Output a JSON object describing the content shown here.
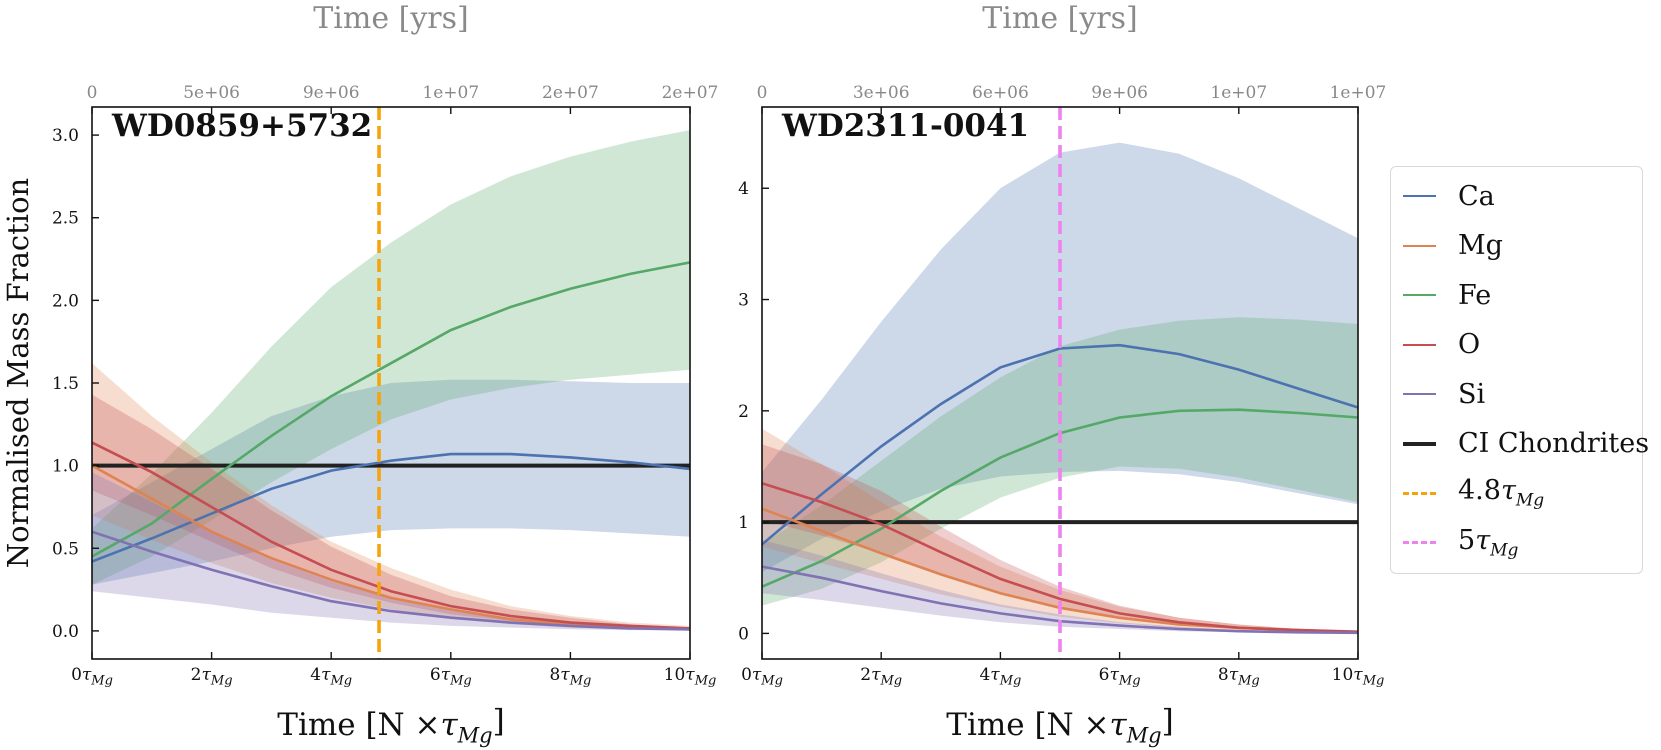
{
  "chart_data": [
    {
      "type": "line",
      "title": "WD0859+5732",
      "xlabel": "Time [N ×τMg]",
      "ylabel": "Normalised Mass Fraction",
      "top_xlabel": "Time [yrs]",
      "x_ticks": [
        "0τMg",
        "2τMg",
        "4τMg",
        "6τMg",
        "8τMg",
        "10τMg"
      ],
      "top_ticks": [
        "0",
        "5e+06",
        "9e+06",
        "1e+07",
        "2e+07",
        "2e+07"
      ],
      "y_ticks": [
        "0.0",
        "0.5",
        "1.0",
        "1.5",
        "2.0",
        "2.5",
        "3.0"
      ],
      "xlim": [
        0,
        10
      ],
      "ylim": [
        -0.17,
        3.17
      ],
      "x": [
        0,
        1,
        2,
        3,
        4,
        5,
        6,
        7,
        8,
        9,
        10
      ],
      "series": [
        {
          "name": "Ca",
          "color": "#4c72b0",
          "values": [
            0.42,
            0.56,
            0.71,
            0.86,
            0.97,
            1.03,
            1.07,
            1.07,
            1.05,
            1.02,
            0.98
          ],
          "lower": [
            0.28,
            0.35,
            0.42,
            0.5,
            0.57,
            0.61,
            0.62,
            0.62,
            0.61,
            0.59,
            0.57
          ],
          "upper": [
            0.7,
            0.9,
            1.1,
            1.3,
            1.42,
            1.5,
            1.52,
            1.52,
            1.51,
            1.5,
            1.5
          ]
        },
        {
          "name": "Fe",
          "color": "#55a868",
          "values": [
            0.45,
            0.65,
            0.92,
            1.18,
            1.42,
            1.62,
            1.82,
            1.96,
            2.07,
            2.16,
            2.23
          ],
          "lower": [
            0.28,
            0.45,
            0.67,
            0.9,
            1.1,
            1.28,
            1.4,
            1.47,
            1.52,
            1.55,
            1.58
          ],
          "upper": [
            0.62,
            0.95,
            1.32,
            1.72,
            2.08,
            2.35,
            2.58,
            2.75,
            2.87,
            2.96,
            3.03
          ]
        },
        {
          "name": "Mg",
          "color": "#dd8452",
          "values": [
            1.0,
            0.8,
            0.6,
            0.44,
            0.31,
            0.2,
            0.13,
            0.07,
            0.04,
            0.02,
            0.01
          ],
          "lower": [
            0.7,
            0.55,
            0.41,
            0.29,
            0.2,
            0.13,
            0.08,
            0.04,
            0.02,
            0.01,
            0.005
          ],
          "upper": [
            1.62,
            1.3,
            1.02,
            0.76,
            0.54,
            0.38,
            0.25,
            0.15,
            0.09,
            0.05,
            0.03
          ]
        },
        {
          "name": "O",
          "color": "#c44e52",
          "values": [
            1.14,
            0.96,
            0.75,
            0.54,
            0.37,
            0.24,
            0.15,
            0.09,
            0.05,
            0.03,
            0.015
          ],
          "lower": [
            0.85,
            0.7,
            0.54,
            0.38,
            0.26,
            0.17,
            0.1,
            0.06,
            0.03,
            0.02,
            0.01
          ],
          "upper": [
            1.43,
            1.22,
            0.98,
            0.73,
            0.51,
            0.34,
            0.21,
            0.13,
            0.08,
            0.04,
            0.02
          ]
        },
        {
          "name": "Si",
          "color": "#8172b3",
          "values": [
            0.6,
            0.48,
            0.37,
            0.27,
            0.18,
            0.12,
            0.08,
            0.05,
            0.03,
            0.015,
            0.01
          ],
          "lower": [
            0.24,
            0.2,
            0.16,
            0.11,
            0.08,
            0.05,
            0.03,
            0.02,
            0.01,
            0.005,
            0.0
          ],
          "upper": [
            0.96,
            0.78,
            0.6,
            0.43,
            0.3,
            0.2,
            0.13,
            0.08,
            0.05,
            0.03,
            0.02
          ]
        }
      ],
      "hlines": [
        {
          "name": "CI Chondrites",
          "y": 1.0,
          "color": "#222222"
        }
      ],
      "vlines": [
        {
          "name": "4.8τMg",
          "x": 4.8,
          "color": "#f5a30e"
        }
      ]
    },
    {
      "type": "line",
      "title": "WD2311-0041",
      "xlabel": "Time [N ×τMg]",
      "top_xlabel": "Time [yrs]",
      "x_ticks": [
        "0τMg",
        "2τMg",
        "4τMg",
        "6τMg",
        "8τMg",
        "10τMg"
      ],
      "top_ticks": [
        "0",
        "3e+06",
        "6e+06",
        "9e+06",
        "1e+07",
        "1e+07"
      ],
      "y_ticks": [
        "0",
        "1",
        "2",
        "3",
        "4"
      ],
      "xlim": [
        0,
        10
      ],
      "ylim": [
        -0.23,
        4.73
      ],
      "x": [
        0,
        1,
        2,
        3,
        4,
        5,
        6,
        7,
        8,
        9,
        10
      ],
      "series": [
        {
          "name": "Ca",
          "color": "#4c72b0",
          "values": [
            0.8,
            1.25,
            1.68,
            2.06,
            2.39,
            2.56,
            2.59,
            2.51,
            2.37,
            2.2,
            2.03
          ],
          "lower": [
            0.55,
            0.85,
            1.1,
            1.3,
            1.41,
            1.45,
            1.46,
            1.43,
            1.36,
            1.26,
            1.16
          ],
          "upper": [
            1.45,
            2.1,
            2.8,
            3.45,
            4.0,
            4.32,
            4.41,
            4.31,
            4.09,
            3.82,
            3.55
          ]
        },
        {
          "name": "Fe",
          "color": "#55a868",
          "values": [
            0.42,
            0.65,
            0.94,
            1.28,
            1.58,
            1.8,
            1.94,
            2.0,
            2.01,
            1.98,
            1.94
          ],
          "lower": [
            0.25,
            0.4,
            0.64,
            0.94,
            1.22,
            1.4,
            1.5,
            1.48,
            1.4,
            1.29,
            1.18
          ],
          "upper": [
            0.8,
            1.15,
            1.55,
            1.95,
            2.3,
            2.58,
            2.73,
            2.81,
            2.84,
            2.82,
            2.78
          ]
        },
        {
          "name": "Mg",
          "color": "#dd8452",
          "values": [
            1.12,
            0.92,
            0.72,
            0.53,
            0.36,
            0.23,
            0.14,
            0.08,
            0.05,
            0.03,
            0.01
          ],
          "lower": [
            0.78,
            0.63,
            0.49,
            0.35,
            0.24,
            0.15,
            0.09,
            0.05,
            0.03,
            0.01,
            0.005
          ],
          "upper": [
            1.84,
            1.52,
            1.18,
            0.87,
            0.6,
            0.39,
            0.24,
            0.14,
            0.08,
            0.04,
            0.02
          ]
        },
        {
          "name": "O",
          "color": "#c44e52",
          "values": [
            1.35,
            1.18,
            0.98,
            0.73,
            0.49,
            0.31,
            0.18,
            0.1,
            0.05,
            0.03,
            0.015
          ],
          "lower": [
            1.02,
            0.88,
            0.72,
            0.53,
            0.35,
            0.22,
            0.13,
            0.07,
            0.04,
            0.02,
            0.01
          ],
          "upper": [
            1.7,
            1.52,
            1.28,
            0.96,
            0.66,
            0.42,
            0.25,
            0.14,
            0.08,
            0.04,
            0.02
          ]
        },
        {
          "name": "Si",
          "color": "#8172b3",
          "values": [
            0.6,
            0.5,
            0.38,
            0.27,
            0.18,
            0.11,
            0.07,
            0.04,
            0.02,
            0.01,
            0.005
          ],
          "lower": [
            0.36,
            0.3,
            0.23,
            0.16,
            0.1,
            0.06,
            0.04,
            0.02,
            0.01,
            0.005,
            0.0
          ],
          "upper": [
            0.84,
            0.7,
            0.54,
            0.39,
            0.26,
            0.17,
            0.1,
            0.06,
            0.03,
            0.02,
            0.01
          ]
        }
      ],
      "hlines": [
        {
          "name": "CI Chondrites",
          "y": 1.0,
          "color": "#222222"
        }
      ],
      "vlines": [
        {
          "name": "5τMg",
          "x": 5.0,
          "color": "#ee82ee"
        }
      ]
    }
  ],
  "legend": {
    "items": [
      {
        "label": "Ca",
        "color": "#4c72b0",
        "style": "solid"
      },
      {
        "label": "Mg",
        "color": "#dd8452",
        "style": "solid"
      },
      {
        "label": "Fe",
        "color": "#55a868",
        "style": "solid"
      },
      {
        "label": "O",
        "color": "#c44e52",
        "style": "solid"
      },
      {
        "label": "Si",
        "color": "#8172b3",
        "style": "solid"
      },
      {
        "label": "CI Chondrites",
        "color": "#222222",
        "style": "thick"
      },
      {
        "label": "4.8τMg",
        "color": "#f5a30e",
        "style": "dashed"
      },
      {
        "label": "5τMg",
        "color": "#ee82ee",
        "style": "dashed"
      }
    ]
  }
}
